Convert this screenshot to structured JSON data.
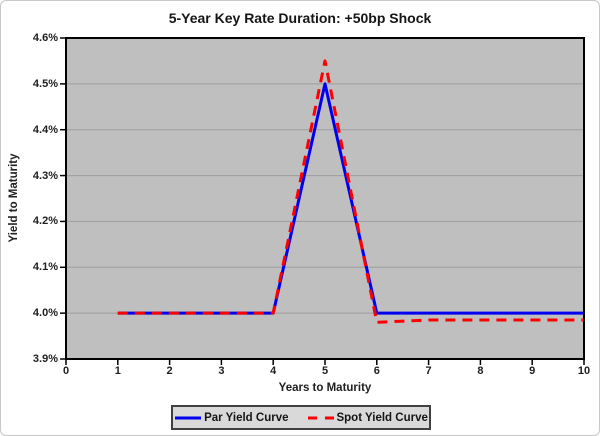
{
  "title": "5-Year Key Rate Duration: +50bp Shock",
  "chart_data": {
    "type": "line",
    "title": "5-Year Key Rate Duration: +50bp Shock",
    "xlabel": "Years to Maturity",
    "ylabel": "Yield to Maturity",
    "xlim": [
      0,
      10
    ],
    "ylim": [
      3.9,
      4.6
    ],
    "grid": true,
    "legend_position": "bottom",
    "plot_bg": "#BFBFBF",
    "grid_color": "#9E9E9E",
    "axis_color": "#000000",
    "legend_bg": "#D9D9D9",
    "x": [
      1,
      2,
      3,
      4,
      5,
      6,
      7,
      8,
      9,
      10
    ],
    "series": [
      {
        "name": "Par Yield Curve",
        "color": "#0000EE",
        "style": "solid",
        "values": [
          4.0,
          4.0,
          4.0,
          4.0,
          4.5,
          4.0,
          4.0,
          4.0,
          4.0,
          4.0
        ]
      },
      {
        "name": "Spot Yield Curve",
        "color": "#FF0000",
        "style": "dashed",
        "values": [
          4.0,
          4.0,
          4.0,
          4.0,
          4.55,
          3.98,
          3.985,
          3.985,
          3.985,
          3.985
        ]
      }
    ],
    "x_ticks": [
      {
        "value": 0,
        "label": "0"
      },
      {
        "value": 1,
        "label": "1"
      },
      {
        "value": 2,
        "label": "2"
      },
      {
        "value": 3,
        "label": "3"
      },
      {
        "value": 4,
        "label": "4"
      },
      {
        "value": 5,
        "label": "5"
      },
      {
        "value": 6,
        "label": "6"
      },
      {
        "value": 7,
        "label": "7"
      },
      {
        "value": 8,
        "label": "8"
      },
      {
        "value": 9,
        "label": "9"
      },
      {
        "value": 10,
        "label": "10"
      }
    ],
    "y_ticks": [
      {
        "value": 4.6,
        "label": "4.6%"
      },
      {
        "value": 4.5,
        "label": "4.5%"
      },
      {
        "value": 4.4,
        "label": "4.4%"
      },
      {
        "value": 4.3,
        "label": "4.3%"
      },
      {
        "value": 4.2,
        "label": "4.2%"
      },
      {
        "value": 4.1,
        "label": "4.1%"
      },
      {
        "value": 4.0,
        "label": "4.0%"
      },
      {
        "value": 3.9,
        "label": "3.9%"
      }
    ]
  }
}
